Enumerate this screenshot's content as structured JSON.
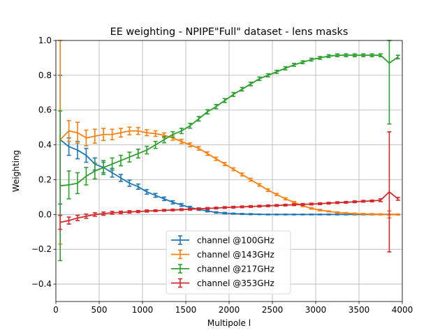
{
  "chart_data": {
    "type": "line",
    "title": "EE weighting - NPIPE\"Full\" dataset - lens masks",
    "xlabel": "Multipole l",
    "ylabel": "Weighting",
    "xlim": [
      0,
      4000
    ],
    "ylim": [
      -0.5,
      1.0
    ],
    "xticks": [
      0,
      500,
      1000,
      1500,
      2000,
      2500,
      3000,
      3500,
      4000
    ],
    "yticks": [
      -0.4,
      -0.2,
      0.0,
      0.2,
      0.4,
      0.6,
      0.8,
      1.0
    ],
    "xtick_labels": [
      "0",
      "500",
      "1000",
      "1500",
      "2000",
      "2500",
      "3000",
      "3500",
      "4000"
    ],
    "ytick_labels": [
      "−0.4",
      "−0.2",
      "0.0",
      "0.2",
      "0.4",
      "0.6",
      "0.8",
      "1.0"
    ],
    "grid": true,
    "legend_placement": "lower-center",
    "x": [
      50,
      150,
      250,
      350,
      450,
      550,
      650,
      750,
      850,
      950,
      1050,
      1150,
      1250,
      1350,
      1450,
      1550,
      1650,
      1750,
      1850,
      1950,
      2050,
      2150,
      2250,
      2350,
      2450,
      2550,
      2650,
      2750,
      2850,
      2950,
      3050,
      3150,
      3250,
      3350,
      3450,
      3550,
      3650,
      3750,
      3850,
      3950
    ],
    "series": [
      {
        "name": "channel @100GHz",
        "color": "#1f77b4",
        "values": [
          0.43,
          0.39,
          0.37,
          0.34,
          0.29,
          0.27,
          0.24,
          0.21,
          0.18,
          0.16,
          0.13,
          0.11,
          0.09,
          0.07,
          0.055,
          0.04,
          0.03,
          0.02,
          0.012,
          0.008,
          0.005,
          0.003,
          0.002,
          0.001,
          0.0,
          0.0,
          0.0,
          0.0,
          0.0,
          0.0,
          0.0,
          0.0,
          0.0,
          0.0,
          0.0,
          0.0,
          0.0,
          0.0,
          0.0,
          0.0
        ],
        "errors": [
          0.37,
          0.05,
          0.05,
          0.04,
          0.035,
          0.03,
          0.025,
          0.02,
          0.018,
          0.015,
          0.013,
          0.011,
          0.01,
          0.009,
          0.008,
          0.007,
          0.006,
          0.005,
          0.004,
          0.004,
          0.003,
          0.003,
          0.003,
          0.002,
          0.002,
          0.002,
          0.002,
          0.002,
          0.002,
          0.002,
          0.002,
          0.002,
          0.002,
          0.002,
          0.002,
          0.002,
          0.002,
          0.002,
          0.002,
          0.002
        ]
      },
      {
        "name": "channel @143GHz",
        "color": "#ff7f0e",
        "values": [
          0.43,
          0.48,
          0.47,
          0.44,
          0.45,
          0.46,
          0.46,
          0.47,
          0.48,
          0.48,
          0.47,
          0.465,
          0.455,
          0.44,
          0.42,
          0.4,
          0.38,
          0.35,
          0.32,
          0.29,
          0.26,
          0.23,
          0.2,
          0.17,
          0.14,
          0.115,
          0.09,
          0.07,
          0.05,
          0.035,
          0.025,
          0.018,
          0.012,
          0.008,
          0.005,
          0.003,
          0.002,
          0.001,
          0.0,
          0.0
        ],
        "errors": [
          0.6,
          0.06,
          0.06,
          0.045,
          0.04,
          0.035,
          0.03,
          0.025,
          0.022,
          0.02,
          0.017,
          0.016,
          0.014,
          0.013,
          0.012,
          0.011,
          0.01,
          0.01,
          0.009,
          0.009,
          0.008,
          0.008,
          0.008,
          0.007,
          0.007,
          0.006,
          0.006,
          0.005,
          0.005,
          0.004,
          0.004,
          0.003,
          0.003,
          0.003,
          0.003,
          0.003,
          0.003,
          0.003,
          0.02,
          0.003
        ]
      },
      {
        "name": "channel @217GHz",
        "color": "#2ca02c",
        "values": [
          0.165,
          0.17,
          0.18,
          0.22,
          0.25,
          0.27,
          0.29,
          0.31,
          0.33,
          0.35,
          0.37,
          0.4,
          0.43,
          0.46,
          0.48,
          0.51,
          0.55,
          0.59,
          0.62,
          0.655,
          0.69,
          0.72,
          0.75,
          0.78,
          0.8,
          0.82,
          0.84,
          0.86,
          0.875,
          0.89,
          0.9,
          0.91,
          0.915,
          0.915,
          0.915,
          0.915,
          0.915,
          0.915,
          0.87,
          0.905
        ],
        "errors": [
          0.43,
          0.08,
          0.06,
          0.05,
          0.045,
          0.04,
          0.035,
          0.03,
          0.028,
          0.025,
          0.022,
          0.02,
          0.018,
          0.016,
          0.015,
          0.014,
          0.013,
          0.012,
          0.012,
          0.011,
          0.011,
          0.01,
          0.01,
          0.01,
          0.009,
          0.009,
          0.009,
          0.008,
          0.008,
          0.008,
          0.008,
          0.008,
          0.008,
          0.008,
          0.008,
          0.008,
          0.008,
          0.008,
          0.35,
          0.01
        ]
      },
      {
        "name": "channel @353GHz",
        "color": "#d62728",
        "values": [
          -0.045,
          -0.035,
          -0.02,
          -0.01,
          0.0,
          0.005,
          0.01,
          0.012,
          0.015,
          0.017,
          0.02,
          0.022,
          0.024,
          0.026,
          0.028,
          0.03,
          0.033,
          0.035,
          0.037,
          0.04,
          0.042,
          0.044,
          0.046,
          0.048,
          0.05,
          0.052,
          0.054,
          0.056,
          0.058,
          0.06,
          0.062,
          0.065,
          0.068,
          0.07,
          0.073,
          0.076,
          0.078,
          0.082,
          0.13,
          0.09
        ],
        "errors": [
          0.04,
          0.02,
          0.015,
          0.012,
          0.01,
          0.009,
          0.008,
          0.007,
          0.007,
          0.006,
          0.006,
          0.005,
          0.005,
          0.005,
          0.005,
          0.005,
          0.005,
          0.005,
          0.005,
          0.005,
          0.005,
          0.005,
          0.005,
          0.005,
          0.005,
          0.005,
          0.005,
          0.005,
          0.005,
          0.005,
          0.005,
          0.005,
          0.005,
          0.005,
          0.005,
          0.005,
          0.005,
          0.008,
          0.345,
          0.008
        ]
      }
    ]
  }
}
